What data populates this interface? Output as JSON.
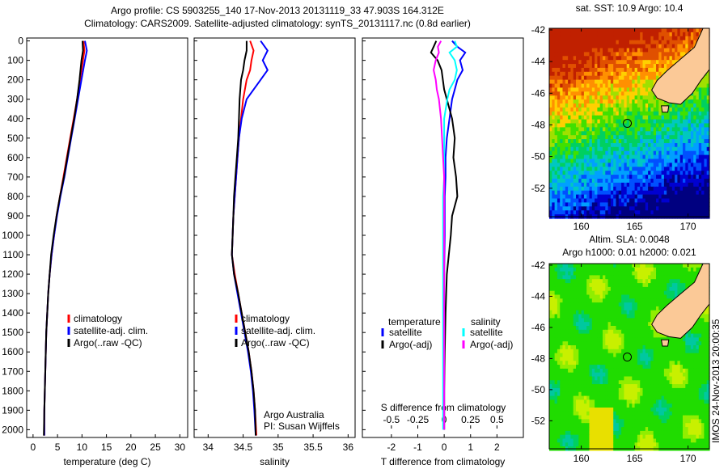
{
  "title_line1": "Argo profile: CS 5903255_140 17-Nov-2013 20131119_33 47.903S 164.312E",
  "title_line2": "Climatology: CARS2009. Satellite-adjusted climatology: synTS_20131117.nc (0.8d earlier)",
  "colors": {
    "climatology": "#ff0000",
    "satellite": "#0000ff",
    "argo": "#000000",
    "sal_satellite": "#00ffff",
    "sal_argo": "#ff00ff",
    "land": "#fbc997"
  },
  "chart_data": [
    {
      "type": "line",
      "id": "temperature",
      "xlabel": "temperature (deg C)",
      "ylabel": "",
      "xlim": [
        -1.3,
        31.6
      ],
      "ylim": [
        2040,
        -15
      ],
      "xticks": [
        0,
        5,
        10,
        15,
        20,
        25,
        30
      ],
      "xtick_labels": [
        "0",
        "5",
        "10",
        "15",
        "20",
        "25",
        "30"
      ],
      "yticks": [
        0,
        100,
        200,
        300,
        400,
        500,
        600,
        700,
        800,
        900,
        1000,
        1100,
        1200,
        1300,
        1400,
        1500,
        1600,
        1700,
        1800,
        1900,
        2000
      ],
      "ytick_labels": [
        "0",
        "100",
        "200",
        "300",
        "400",
        "500",
        "600",
        "700",
        "800",
        "900",
        "1000",
        "1100",
        "1200",
        "1300",
        "1400",
        "1500",
        "1600",
        "1700",
        "1800",
        "1900",
        "2000"
      ],
      "depth": [
        0,
        50,
        100,
        200,
        300,
        400,
        500,
        600,
        700,
        800,
        900,
        1000,
        1100,
        1200,
        1300,
        1400,
        1500,
        1600,
        1700,
        1800,
        1900,
        2030
      ],
      "series": [
        {
          "name": "climatology",
          "color": "#ff0000",
          "values": [
            10.3,
            10.5,
            10.2,
            9.6,
            9.0,
            8.3,
            7.6,
            6.9,
            6.2,
            5.5,
            4.8,
            4.3,
            3.8,
            3.4,
            3.1,
            2.9,
            2.7,
            2.6,
            2.5,
            2.4,
            2.3,
            2.3
          ]
        },
        {
          "name": "satellite-adj. clim.",
          "color": "#0000ff",
          "values": [
            10.6,
            11.0,
            10.6,
            9.9,
            9.2,
            8.5,
            7.8,
            7.1,
            6.4,
            5.6,
            4.9,
            4.3,
            3.8,
            3.4,
            3.1,
            2.9,
            2.7,
            2.6,
            2.5,
            2.4,
            2.3,
            2.3
          ]
        },
        {
          "name": "Argo(..raw -QC)",
          "color": "#000000",
          "values": [
            10.1,
            10.2,
            9.9,
            9.5,
            9.0,
            8.4,
            7.7,
            7.0,
            6.3,
            5.5,
            4.8,
            4.2,
            3.7,
            3.4,
            3.1,
            2.9,
            2.7,
            2.6,
            2.5,
            2.4,
            2.3,
            2.2
          ]
        }
      ],
      "legend": [
        "climatology",
        "satellite-adj. clim.",
        "Argo(..raw -QC)"
      ]
    },
    {
      "type": "line",
      "id": "salinity",
      "xlabel": "salinity",
      "xlim": [
        33.8,
        36.1
      ],
      "ylim": [
        2040,
        -15
      ],
      "xticks": [
        34,
        34.5,
        35,
        35.5,
        36
      ],
      "xtick_labels": [
        "34",
        "34.5",
        "35",
        "35.5",
        "36"
      ],
      "depth": [
        0,
        50,
        100,
        150,
        200,
        300,
        400,
        500,
        600,
        700,
        800,
        900,
        1000,
        1100,
        1200,
        1300,
        1400,
        1500,
        1600,
        1700,
        1800,
        1900,
        2030
      ],
      "series": [
        {
          "name": "climatology",
          "color": "#ff0000",
          "values": [
            34.6,
            34.65,
            34.62,
            34.6,
            34.55,
            34.5,
            34.47,
            34.44,
            34.42,
            34.4,
            34.38,
            34.36,
            34.35,
            34.34,
            34.38,
            34.43,
            34.48,
            34.53,
            34.58,
            34.62,
            34.65,
            34.67,
            34.69
          ]
        },
        {
          "name": "satellite-adj. clim.",
          "color": "#0000ff",
          "values": [
            34.75,
            34.85,
            34.78,
            34.85,
            34.75,
            34.55,
            34.48,
            34.44,
            34.42,
            34.4,
            34.38,
            34.36,
            34.35,
            34.34,
            34.37,
            34.42,
            34.47,
            34.52,
            34.57,
            34.61,
            34.64,
            34.66,
            34.68
          ]
        },
        {
          "name": "Argo(..raw -QC)",
          "color": "#000000",
          "values": [
            34.55,
            34.55,
            34.52,
            34.5,
            34.47,
            34.45,
            34.44,
            34.43,
            34.41,
            34.39,
            34.37,
            34.36,
            34.35,
            34.34,
            34.37,
            34.43,
            34.48,
            34.53,
            34.58,
            34.62,
            34.65,
            34.67,
            34.68
          ]
        }
      ],
      "legend": [
        "climatology",
        "satellite-adj. clim.",
        "Argo(..raw -QC)"
      ],
      "annotation": [
        "Argo Australia",
        "PI: Susan Wijffels"
      ]
    },
    {
      "type": "line",
      "id": "differences",
      "xlabel": "T difference from climatology",
      "x2label": "S difference from climatology",
      "xlim": [
        -3.1,
        3.0
      ],
      "ylim": [
        2040,
        -15
      ],
      "xticks": [
        -2,
        -1,
        0,
        1,
        2
      ],
      "xtick_labels": [
        "-2",
        "-1",
        "0",
        "1",
        "2"
      ],
      "x2ticks": [
        -0.5,
        -0.25,
        0,
        0.25,
        0.5
      ],
      "x2tick_labels": [
        "-0.5",
        "-0.25",
        "0",
        "0.25",
        "0.5"
      ],
      "depth": [
        0,
        30,
        60,
        100,
        150,
        200,
        250,
        300,
        400,
        500,
        600,
        700,
        800,
        900,
        1000,
        1200,
        1400,
        1600,
        1800,
        2000
      ],
      "series": [
        {
          "name": "T satellite",
          "axis": "T",
          "color": "#0000ff",
          "values": [
            0.3,
            0.5,
            0.8,
            0.6,
            0.7,
            0.5,
            0.4,
            0.3,
            0.2,
            0.1,
            0.05,
            0.05,
            0.02,
            0.02,
            0.02,
            0.0,
            0.0,
            0.0,
            0.0,
            0.0
          ]
        },
        {
          "name": "T Argo(-adj)",
          "axis": "T",
          "color": "#000000",
          "values": [
            -0.3,
            -0.4,
            -0.5,
            -0.25,
            -0.1,
            -0.05,
            0.0,
            0.1,
            0.3,
            0.4,
            0.35,
            0.45,
            0.5,
            0.3,
            0.25,
            0.1,
            0.05,
            0.02,
            0.0,
            0.0
          ]
        },
        {
          "name": "S satellite",
          "axis": "S",
          "color": "#00ffff",
          "values": [
            0.1,
            0.12,
            0.05,
            0.1,
            0.12,
            0.1,
            0.05,
            0.03,
            0.0,
            0.0,
            0.0,
            0.0,
            -0.01,
            -0.01,
            -0.01,
            -0.01,
            -0.01,
            -0.01,
            -0.01,
            -0.01
          ]
        },
        {
          "name": "S Argo(-adj)",
          "axis": "S",
          "color": "#ff00ff",
          "values": [
            -0.03,
            -0.06,
            -0.05,
            -0.08,
            -0.1,
            -0.08,
            -0.07,
            -0.05,
            -0.03,
            -0.02,
            -0.01,
            0.0,
            0.0,
            0.0,
            0.0,
            0.0,
            0.0,
            0.0,
            0.0,
            0.0
          ]
        }
      ],
      "legend_t_header": "temperature",
      "legend_s_header": "salinity",
      "legend": [
        "satellite",
        "Argo(-adj)",
        "satellite",
        "Argo(-adj)"
      ]
    },
    {
      "type": "heatmap",
      "id": "sst_map",
      "title": "sat. SST: 10.9  Argo: 10.4",
      "xlim": [
        157,
        172
      ],
      "ylim": [
        -53.8,
        -41.9
      ],
      "xticks": [
        160,
        165,
        170
      ],
      "xtick_labels": [
        "160",
        "165",
        "170"
      ],
      "yticks": [
        -42,
        -44,
        -46,
        -48,
        -50,
        -52
      ],
      "ytick_labels": [
        "-42",
        "-44",
        "-46",
        "-48",
        "-50",
        "-52"
      ],
      "marker": {
        "lon": 164.312,
        "lat": -47.903
      }
    },
    {
      "type": "heatmap",
      "id": "sla_map",
      "title": "Altim. SLA: 0.0048",
      "subtitle": "Argo h1000: 0.01 h2000: 0.021",
      "xlim": [
        157,
        172
      ],
      "ylim": [
        -53.8,
        -41.9
      ],
      "xticks": [
        160,
        165,
        170
      ],
      "xtick_labels": [
        "160",
        "165",
        "170"
      ],
      "yticks": [
        -42,
        -44,
        -46,
        -48,
        -50,
        -52
      ],
      "ytick_labels": [
        "-42",
        "-44",
        "-46",
        "-48",
        "-50",
        "-52"
      ],
      "marker": {
        "lon": 164.312,
        "lat": -47.903
      }
    }
  ],
  "footer": "IMOS 24-Nov-2013 20:00:35"
}
